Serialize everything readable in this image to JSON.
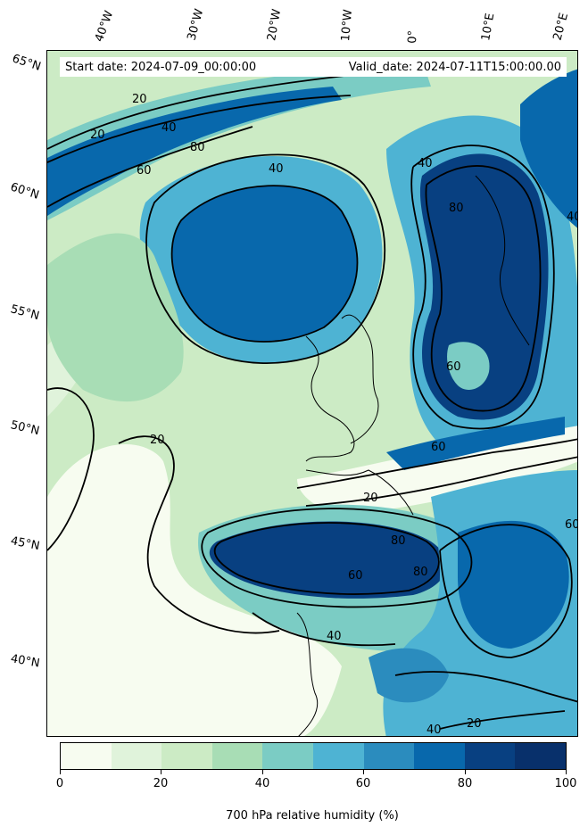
{
  "header": {
    "start_date": "Start date: 2024-07-09_00:00:00",
    "valid_date": "Valid_date: 2024-07-11T15:00:00.00"
  },
  "longitude_labels": [
    "40°W",
    "30°W",
    "20°W",
    "10°W",
    "0°",
    "10°E",
    "20°E"
  ],
  "latitude_labels": [
    "65°N",
    "60°N",
    "55°N",
    "50°N",
    "45°N",
    "40°N"
  ],
  "contour_levels": [
    "20",
    "40",
    "60",
    "80"
  ],
  "colorbar": {
    "title": "700 hPa relative humidity (%)",
    "tick_labels": [
      "0",
      "20",
      "40",
      "60",
      "80",
      "100"
    ],
    "colors": [
      "#f7fcf0",
      "#e0f3db",
      "#ccebc5",
      "#a8ddb5",
      "#7bccc4",
      "#4eb3d3",
      "#2b8cbe",
      "#0868ac",
      "#084081",
      "#08306b"
    ]
  },
  "map_colors": {
    "dry": "#f7fcf0",
    "low": "#ccebc5",
    "mid": "#7bccc4",
    "high": "#4eb3d3",
    "very_high": "#0868ac",
    "saturated": "#084081",
    "contour": "#000000"
  }
}
